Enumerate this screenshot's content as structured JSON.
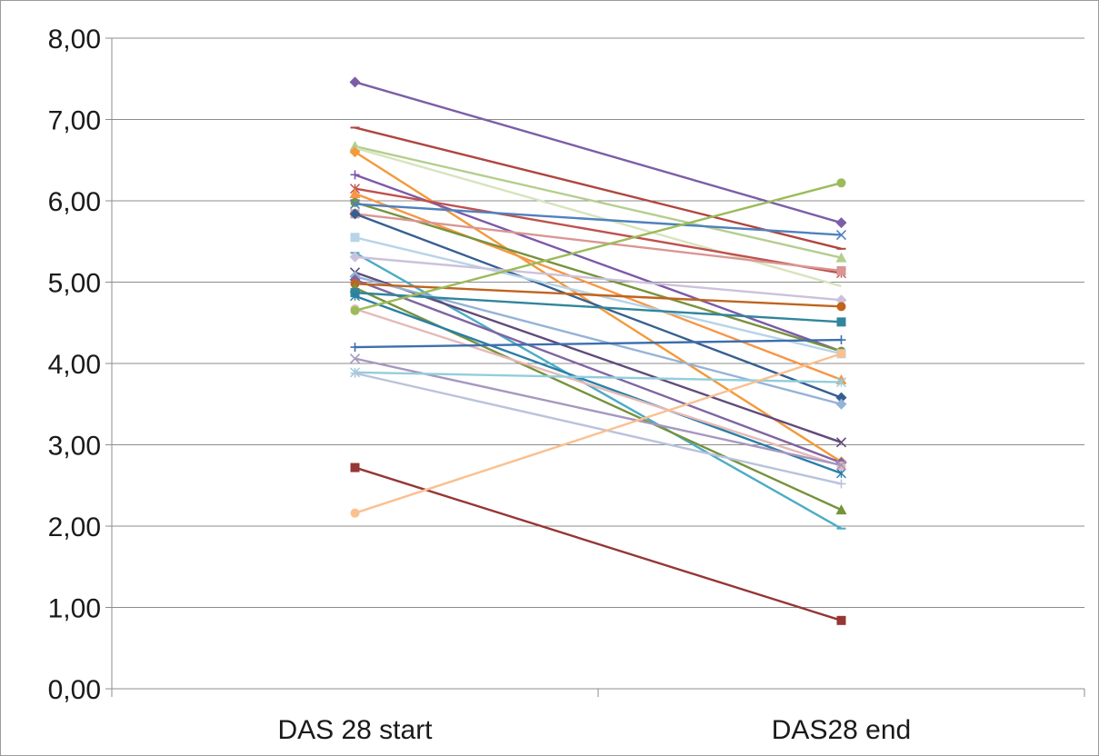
{
  "chart_data": {
    "type": "line",
    "categories": [
      "DAS 28 start",
      "DAS28 end"
    ],
    "ylim": [
      0,
      8
    ],
    "y_ticks": [
      "0,00",
      "1,00",
      "2,00",
      "3,00",
      "4,00",
      "5,00",
      "6,00",
      "7,00",
      "8,00"
    ],
    "grid": true,
    "legend": "none",
    "series": [
      {
        "values": [
          7.46,
          5.73
        ],
        "color": "#7b5ea7",
        "marker": "diamond"
      },
      {
        "values": [
          6.9,
          5.41
        ],
        "color": "#b0453f",
        "marker": "dash"
      },
      {
        "values": [
          6.67,
          5.3
        ],
        "color": "#b4ce8e",
        "marker": "triangle"
      },
      {
        "values": [
          6.65,
          4.95
        ],
        "color": "#d7e4bd",
        "marker": "cross"
      },
      {
        "values": [
          6.6,
          2.79
        ],
        "color": "#f39a3a",
        "marker": "diamond"
      },
      {
        "values": [
          6.32,
          4.15
        ],
        "color": "#7c59a8",
        "marker": "plus"
      },
      {
        "values": [
          6.15,
          5.11
        ],
        "color": "#c0504d",
        "marker": "star"
      },
      {
        "values": [
          6.09,
          3.8
        ],
        "color": "#f79646",
        "marker": "triangle"
      },
      {
        "values": [
          5.98,
          4.15
        ],
        "color": "#77933c",
        "marker": "circle"
      },
      {
        "values": [
          5.96,
          5.58
        ],
        "color": "#4f81bd",
        "marker": "x"
      },
      {
        "values": [
          5.84,
          5.14
        ],
        "color": "#d99694",
        "marker": "square"
      },
      {
        "values": [
          5.84,
          3.58
        ],
        "color": "#365f91",
        "marker": "diamond"
      },
      {
        "values": [
          5.55,
          4.12
        ],
        "color": "#b7d4e8",
        "marker": "square"
      },
      {
        "values": [
          5.36,
          1.97
        ],
        "color": "#4bacc6",
        "marker": "dash"
      },
      {
        "values": [
          5.31,
          4.78
        ],
        "color": "#ccc1da",
        "marker": "diamond"
      },
      {
        "values": [
          5.12,
          3.03
        ],
        "color": "#604a7b",
        "marker": "x"
      },
      {
        "values": [
          5.07,
          3.5
        ],
        "color": "#95b3d7",
        "marker": "diamond"
      },
      {
        "values": [
          5.03,
          2.78
        ],
        "color": "#8064a2",
        "marker": "diamond"
      },
      {
        "values": [
          4.98,
          4.7
        ],
        "color": "#c0641e",
        "marker": "circle"
      },
      {
        "values": [
          4.93,
          2.2
        ],
        "color": "#76923c",
        "marker": "triangle"
      },
      {
        "values": [
          4.87,
          4.51
        ],
        "color": "#31859c",
        "marker": "square"
      },
      {
        "values": [
          4.83,
          2.65
        ],
        "color": "#2a7fa6",
        "marker": "star"
      },
      {
        "values": [
          4.67,
          2.74
        ],
        "color": "#e6b9b8",
        "marker": "circle"
      },
      {
        "values": [
          4.65,
          6.22
        ],
        "color": "#9bbb59",
        "marker": "circle"
      },
      {
        "values": [
          4.2,
          4.29
        ],
        "color": "#3d6fae",
        "marker": "plus"
      },
      {
        "values": [
          4.06,
          2.75
        ],
        "color": "#a697c0",
        "marker": "x"
      },
      {
        "values": [
          3.89,
          3.77
        ],
        "color": "#93cddd",
        "marker": "star"
      },
      {
        "values": [
          3.88,
          2.52
        ],
        "color": "#b9c3dc",
        "marker": "plus"
      },
      {
        "values": [
          2.72,
          0.84
        ],
        "color": "#953735",
        "marker": "square"
      },
      {
        "values": [
          2.16,
          4.12
        ],
        "color": "#fac090",
        "marker": "circle"
      }
    ]
  }
}
